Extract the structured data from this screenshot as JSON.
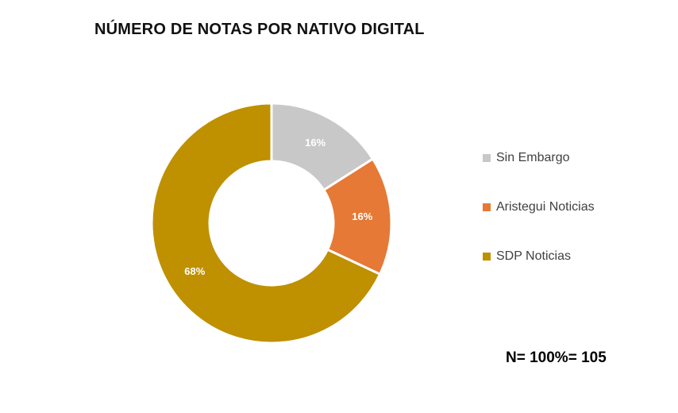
{
  "chart_data": {
    "type": "pie",
    "subtype": "donut",
    "title": "NÚMERO DE NOTAS POR NATIVO DIGITAL",
    "categories": [
      "Sin Embargo",
      "Aristegui Noticias",
      "SDP Noticias"
    ],
    "values": [
      16,
      16,
      68
    ],
    "value_labels": [
      "16%",
      "16%",
      "68%"
    ],
    "colors": [
      "#c8c8c8",
      "#e57935",
      "#bf9000"
    ],
    "legend_position": "right",
    "note": "N= 100%= 105"
  }
}
